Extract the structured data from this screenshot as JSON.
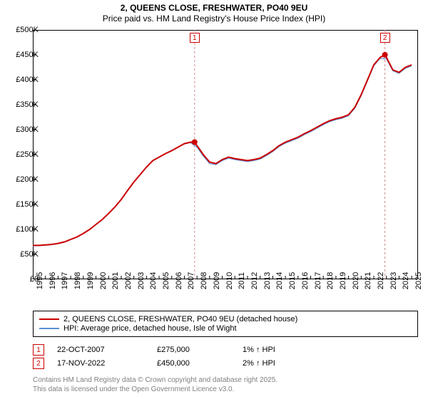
{
  "title": {
    "line1": "2, QUEENS CLOSE, FRESHWATER, PO40 9EU",
    "line2": "Price paid vs. HM Land Registry's House Price Index (HPI)",
    "fontsize": 12
  },
  "chart": {
    "type": "line",
    "background_color": "#ffffff",
    "border_color": "#000000",
    "grid": false,
    "xlim": [
      1995,
      2025.5
    ],
    "ylim": [
      0,
      500000
    ],
    "ytick_step": 50000,
    "ytick_labels": [
      "£0",
      "£50K",
      "£100K",
      "£150K",
      "£200K",
      "£250K",
      "£300K",
      "£350K",
      "£400K",
      "£450K",
      "£500K"
    ],
    "xtick_step": 1,
    "xtick_labels": [
      "1995",
      "1996",
      "1997",
      "1998",
      "1999",
      "2000",
      "2001",
      "2002",
      "2003",
      "2004",
      "2005",
      "2006",
      "2007",
      "2008",
      "2009",
      "2010",
      "2011",
      "2012",
      "2013",
      "2014",
      "2015",
      "2016",
      "2017",
      "2018",
      "2019",
      "2020",
      "2021",
      "2022",
      "2023",
      "2024",
      "2025"
    ],
    "label_fontsize": 11,
    "series": [
      {
        "name": "price_paid",
        "label": "2, QUEENS CLOSE, FRESHWATER, PO40 9EU (detached house)",
        "color": "#cc0000",
        "line_width": 2,
        "x": [
          1995,
          1995.5,
          1996,
          1996.5,
          1997,
          1997.5,
          1998,
          1998.5,
          1999,
          1999.5,
          2000,
          2000.5,
          2001,
          2001.5,
          2002,
          2002.5,
          2003,
          2003.5,
          2004,
          2004.5,
          2005,
          2005.5,
          2006,
          2006.5,
          2007,
          2007.5,
          2007.81,
          2008,
          2008.5,
          2009,
          2009.5,
          2010,
          2010.5,
          2011,
          2011.5,
          2012,
          2012.5,
          2013,
          2013.5,
          2014,
          2014.5,
          2015,
          2015.5,
          2016,
          2016.5,
          2017,
          2017.5,
          2018,
          2018.5,
          2019,
          2019.5,
          2020,
          2020.5,
          2021,
          2021.5,
          2022,
          2022.5,
          2022.88,
          2023,
          2023.5,
          2024,
          2024.5,
          2025
        ],
        "y": [
          68000,
          68000,
          69000,
          70000,
          72000,
          75000,
          80000,
          85000,
          92000,
          100000,
          110000,
          120000,
          132000,
          145000,
          160000,
          178000,
          195000,
          210000,
          225000,
          238000,
          245000,
          252000,
          258000,
          265000,
          272000,
          275000,
          275000,
          268000,
          250000,
          235000,
          232000,
          240000,
          245000,
          242000,
          240000,
          238000,
          240000,
          243000,
          250000,
          258000,
          268000,
          275000,
          280000,
          285000,
          292000,
          298000,
          305000,
          312000,
          318000,
          322000,
          325000,
          330000,
          345000,
          370000,
          400000,
          430000,
          445000,
          450000,
          445000,
          420000,
          415000,
          425000,
          430000
        ]
      },
      {
        "name": "hpi",
        "label": "HPI: Average price, detached house, Isle of Wight",
        "color": "#5b8fd6",
        "line_width": 1.2,
        "x": [
          1995,
          1995.5,
          1996,
          1996.5,
          1997,
          1997.5,
          1998,
          1998.5,
          1999,
          1999.5,
          2000,
          2000.5,
          2001,
          2001.5,
          2002,
          2002.5,
          2003,
          2003.5,
          2004,
          2004.5,
          2005,
          2005.5,
          2006,
          2006.5,
          2007,
          2007.5,
          2008,
          2008.5,
          2009,
          2009.5,
          2010,
          2010.5,
          2011,
          2011.5,
          2012,
          2012.5,
          2013,
          2013.5,
          2014,
          2014.5,
          2015,
          2015.5,
          2016,
          2016.5,
          2017,
          2017.5,
          2018,
          2018.5,
          2019,
          2019.5,
          2020,
          2020.5,
          2021,
          2021.5,
          2022,
          2022.5,
          2023,
          2023.5,
          2024,
          2024.5,
          2025
        ],
        "y": [
          67000,
          67500,
          68500,
          69500,
          71500,
          74500,
          79500,
          84500,
          91500,
          99500,
          109500,
          119500,
          131500,
          144500,
          159500,
          177500,
          194500,
          209500,
          224500,
          237500,
          244500,
          251500,
          257500,
          264500,
          271500,
          274000,
          265000,
          247000,
          232000,
          230000,
          238000,
          243000,
          240000,
          238000,
          236000,
          238000,
          241000,
          248000,
          256000,
          266000,
          273000,
          278000,
          283000,
          290000,
          296000,
          303000,
          310000,
          316000,
          320000,
          323000,
          328000,
          343000,
          368000,
          398000,
          428000,
          443000,
          442000,
          418000,
          413000,
          423000,
          428000
        ]
      }
    ],
    "markers": [
      {
        "id": "1",
        "x": 2007.81,
        "y": 275000,
        "color": "#cc0000",
        "radius": 4,
        "vline_color": "#cc8888",
        "vline_dash": "3,3"
      },
      {
        "id": "2",
        "x": 2022.88,
        "y": 450000,
        "color": "#cc0000",
        "radius": 4,
        "vline_color": "#cc8888",
        "vline_dash": "3,3"
      }
    ]
  },
  "legend": {
    "border_color": "#000000",
    "fontsize": 11,
    "items": [
      {
        "color": "#cc0000",
        "width": 2,
        "label": "2, QUEENS CLOSE, FRESHWATER, PO40 9EU (detached house)"
      },
      {
        "color": "#5b8fd6",
        "width": 1.2,
        "label": "HPI: Average price, detached house, Isle of Wight"
      }
    ]
  },
  "marker_table": {
    "fontsize": 11,
    "tag_border_color": "#cc0000",
    "rows": [
      {
        "id": "1",
        "date": "22-OCT-2007",
        "price": "£275,000",
        "pct": "1% ↑ HPI"
      },
      {
        "id": "2",
        "date": "17-NOV-2022",
        "price": "£450,000",
        "pct": "2% ↑ HPI"
      }
    ]
  },
  "footnote": {
    "line1": "Contains HM Land Registry data © Crown copyright and database right 2025.",
    "line2": "This data is licensed under the Open Government Licence v3.0.",
    "color": "#808080",
    "fontsize": 10
  }
}
